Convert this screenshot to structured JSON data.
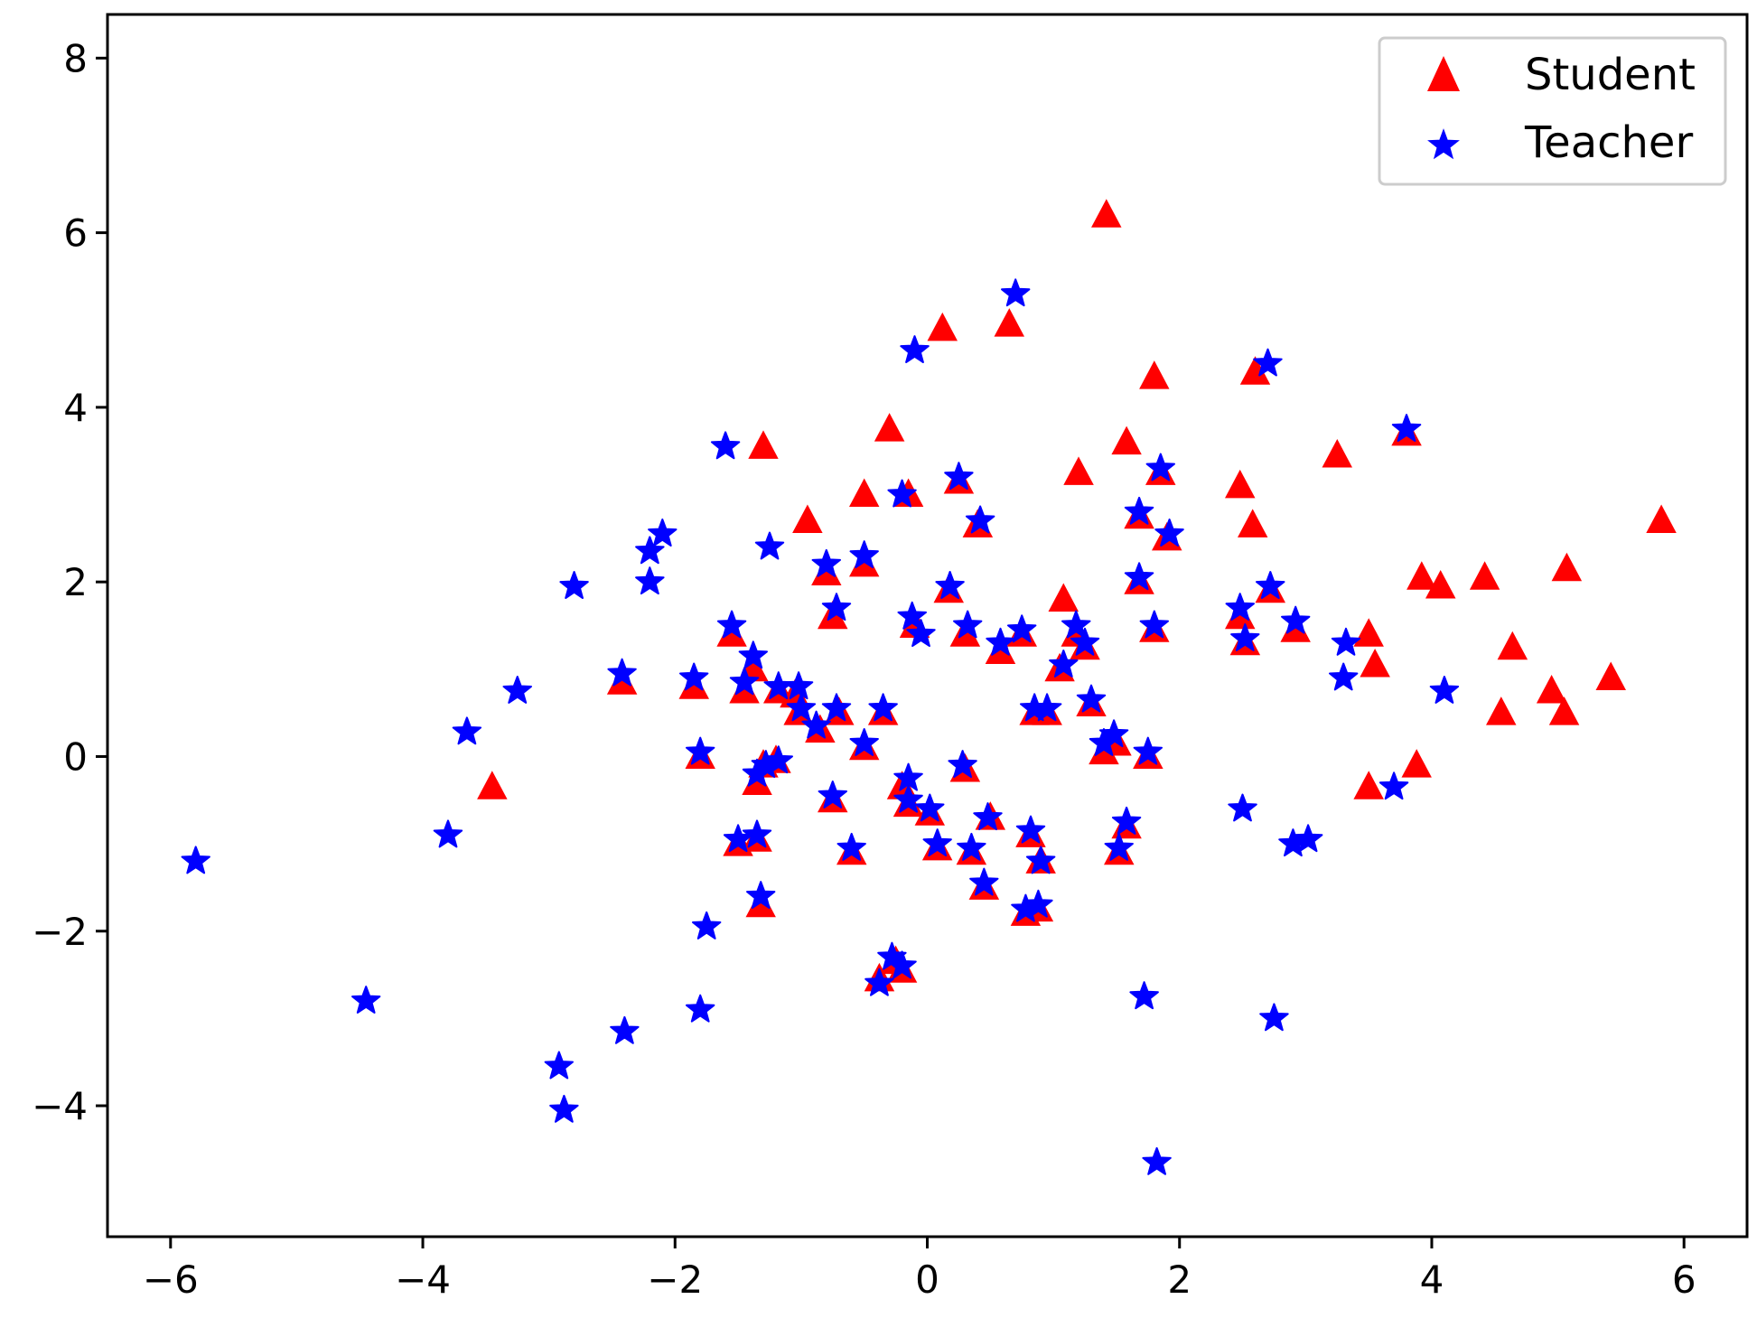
{
  "chart_data": {
    "type": "scatter",
    "title": "",
    "xlabel": "",
    "ylabel": "",
    "xlim": [
      -6.5,
      6.5
    ],
    "ylim": [
      -5.5,
      8.5
    ],
    "xticks": [
      -6,
      -4,
      -2,
      0,
      2,
      4,
      6
    ],
    "yticks": [
      -4,
      -2,
      0,
      2,
      4,
      6,
      8
    ],
    "grid": false,
    "legend_position": "top-right",
    "series": [
      {
        "name": "Student",
        "marker": "triangle",
        "color": "#ff0000",
        "points": [
          [
            1.42,
            6.2
          ],
          [
            0.12,
            4.9
          ],
          [
            0.65,
            4.95
          ],
          [
            1.8,
            4.35
          ],
          [
            2.6,
            4.4
          ],
          [
            -1.3,
            3.55
          ],
          [
            -0.3,
            3.75
          ],
          [
            1.58,
            3.6
          ],
          [
            1.2,
            3.25
          ],
          [
            1.85,
            3.25
          ],
          [
            3.25,
            3.45
          ],
          [
            3.8,
            3.7
          ],
          [
            -0.5,
            3.0
          ],
          [
            -0.15,
            3.0
          ],
          [
            0.25,
            3.15
          ],
          [
            2.48,
            3.1
          ],
          [
            -0.95,
            2.7
          ],
          [
            0.4,
            2.65
          ],
          [
            1.68,
            2.75
          ],
          [
            2.58,
            2.65
          ],
          [
            5.82,
            2.7
          ],
          [
            1.9,
            2.5
          ],
          [
            -0.8,
            2.1
          ],
          [
            -0.5,
            2.2
          ],
          [
            1.08,
            1.8
          ],
          [
            0.17,
            1.9
          ],
          [
            1.68,
            2.0
          ],
          [
            2.72,
            1.9
          ],
          [
            3.92,
            2.05
          ],
          [
            4.07,
            1.95
          ],
          [
            4.42,
            2.05
          ],
          [
            5.07,
            2.15
          ],
          [
            -0.75,
            1.6
          ],
          [
            -0.1,
            1.5
          ],
          [
            0.3,
            1.4
          ],
          [
            0.58,
            1.2
          ],
          [
            0.75,
            1.4
          ],
          [
            1.18,
            1.4
          ],
          [
            1.25,
            1.25
          ],
          [
            1.8,
            1.45
          ],
          [
            2.48,
            1.6
          ],
          [
            2.52,
            1.3
          ],
          [
            2.92,
            1.45
          ],
          [
            3.5,
            1.4
          ],
          [
            3.55,
            1.05
          ],
          [
            -1.55,
            1.4
          ],
          [
            -1.38,
            1.0
          ],
          [
            -2.42,
            0.85
          ],
          [
            -1.85,
            0.8
          ],
          [
            -1.45,
            0.75
          ],
          [
            -1.18,
            0.75
          ],
          [
            -1.05,
            0.7
          ],
          [
            -1.02,
            0.5
          ],
          [
            -0.7,
            0.5
          ],
          [
            -0.35,
            0.5
          ],
          [
            1.05,
            1.0
          ],
          [
            0.85,
            0.5
          ],
          [
            0.95,
            0.5
          ],
          [
            1.3,
            0.6
          ],
          [
            4.64,
            1.25
          ],
          [
            4.95,
            0.75
          ],
          [
            5.05,
            0.5
          ],
          [
            5.42,
            0.9
          ],
          [
            4.55,
            0.5
          ],
          [
            -0.85,
            0.3
          ],
          [
            -0.5,
            0.1
          ],
          [
            1.4,
            0.05
          ],
          [
            1.5,
            0.15
          ],
          [
            1.75,
            0.0
          ],
          [
            -1.8,
            0.0
          ],
          [
            -1.35,
            -0.3
          ],
          [
            -1.3,
            -0.1
          ],
          [
            -1.2,
            -0.05
          ],
          [
            0.3,
            -0.15
          ],
          [
            -0.2,
            -0.35
          ],
          [
            -0.15,
            -0.55
          ],
          [
            0.02,
            -0.65
          ],
          [
            -3.45,
            -0.35
          ],
          [
            3.88,
            -0.1
          ],
          [
            3.5,
            -0.35
          ],
          [
            -0.75,
            -0.5
          ],
          [
            -1.5,
            -1.0
          ],
          [
            -1.35,
            -0.95
          ],
          [
            -0.6,
            -1.1
          ],
          [
            0.08,
            -1.05
          ],
          [
            0.35,
            -1.1
          ],
          [
            0.5,
            -0.7
          ],
          [
            0.82,
            -0.9
          ],
          [
            0.9,
            -1.2
          ],
          [
            1.58,
            -0.8
          ],
          [
            1.52,
            -1.1
          ],
          [
            -1.32,
            -1.7
          ],
          [
            0.45,
            -1.5
          ],
          [
            0.78,
            -1.8
          ],
          [
            0.88,
            -1.75
          ],
          [
            -0.38,
            -2.55
          ],
          [
            -0.2,
            -2.45
          ],
          [
            -0.25,
            -2.35
          ]
        ]
      },
      {
        "name": "Teacher",
        "marker": "star",
        "color": "#0000ff",
        "points": [
          [
            0.7,
            5.3
          ],
          [
            -0.1,
            4.65
          ],
          [
            2.7,
            4.5
          ],
          [
            3.8,
            3.75
          ],
          [
            -1.6,
            3.55
          ],
          [
            0.25,
            3.2
          ],
          [
            1.85,
            3.3
          ],
          [
            -0.2,
            3.0
          ],
          [
            -2.1,
            2.55
          ],
          [
            -2.2,
            2.35
          ],
          [
            -1.25,
            2.4
          ],
          [
            0.42,
            2.7
          ],
          [
            1.68,
            2.8
          ],
          [
            1.92,
            2.55
          ],
          [
            -2.8,
            1.95
          ],
          [
            -2.2,
            2.0
          ],
          [
            -0.8,
            2.2
          ],
          [
            -0.5,
            2.3
          ],
          [
            0.18,
            1.95
          ],
          [
            1.68,
            2.05
          ],
          [
            2.72,
            1.95
          ],
          [
            -1.55,
            1.5
          ],
          [
            -0.72,
            1.7
          ],
          [
            -0.12,
            1.6
          ],
          [
            -0.05,
            1.4
          ],
          [
            0.32,
            1.5
          ],
          [
            0.58,
            1.3
          ],
          [
            0.75,
            1.45
          ],
          [
            1.18,
            1.5
          ],
          [
            1.25,
            1.3
          ],
          [
            1.8,
            1.5
          ],
          [
            2.48,
            1.7
          ],
          [
            2.52,
            1.35
          ],
          [
            2.92,
            1.55
          ],
          [
            3.32,
            1.3
          ],
          [
            -1.38,
            1.15
          ],
          [
            -2.42,
            0.95
          ],
          [
            -1.85,
            0.9
          ],
          [
            -1.45,
            0.85
          ],
          [
            -1.18,
            0.8
          ],
          [
            -1.02,
            0.8
          ],
          [
            -1.0,
            0.55
          ],
          [
            -0.72,
            0.55
          ],
          [
            -0.35,
            0.55
          ],
          [
            1.08,
            1.05
          ],
          [
            0.85,
            0.55
          ],
          [
            0.95,
            0.55
          ],
          [
            1.3,
            0.65
          ],
          [
            3.3,
            0.9
          ],
          [
            4.1,
            0.75
          ],
          [
            -3.25,
            0.75
          ],
          [
            -3.65,
            0.28
          ],
          [
            -0.88,
            0.35
          ],
          [
            -0.5,
            0.15
          ],
          [
            1.4,
            0.15
          ],
          [
            1.48,
            0.25
          ],
          [
            1.75,
            0.05
          ],
          [
            -1.8,
            0.05
          ],
          [
            -1.35,
            -0.2
          ],
          [
            -1.28,
            -0.1
          ],
          [
            -1.18,
            -0.05
          ],
          [
            0.28,
            -0.1
          ],
          [
            -0.15,
            -0.25
          ],
          [
            -0.15,
            -0.5
          ],
          [
            0.02,
            -0.6
          ],
          [
            2.5,
            -0.6
          ],
          [
            3.7,
            -0.35
          ],
          [
            -3.8,
            -0.9
          ],
          [
            -0.75,
            -0.45
          ],
          [
            -1.5,
            -0.95
          ],
          [
            -1.35,
            -0.9
          ],
          [
            -0.6,
            -1.05
          ],
          [
            0.08,
            -1.0
          ],
          [
            0.35,
            -1.05
          ],
          [
            0.48,
            -0.7
          ],
          [
            0.82,
            -0.85
          ],
          [
            0.9,
            -1.2
          ],
          [
            1.58,
            -0.75
          ],
          [
            1.52,
            -1.05
          ],
          [
            2.9,
            -1.0
          ],
          [
            3.02,
            -0.95
          ],
          [
            -5.8,
            -1.2
          ],
          [
            -1.32,
            -1.6
          ],
          [
            0.45,
            -1.45
          ],
          [
            0.78,
            -1.75
          ],
          [
            0.88,
            -1.7
          ],
          [
            -1.75,
            -1.95
          ],
          [
            -4.45,
            -2.8
          ],
          [
            -1.8,
            -2.9
          ],
          [
            1.72,
            -2.75
          ],
          [
            2.75,
            -3.0
          ],
          [
            -2.4,
            -3.15
          ],
          [
            -2.92,
            -3.55
          ],
          [
            -2.88,
            -4.05
          ],
          [
            1.82,
            -4.65
          ],
          [
            -0.38,
            -2.6
          ],
          [
            -0.28,
            -2.3
          ],
          [
            -0.2,
            -2.4
          ]
        ]
      }
    ]
  }
}
